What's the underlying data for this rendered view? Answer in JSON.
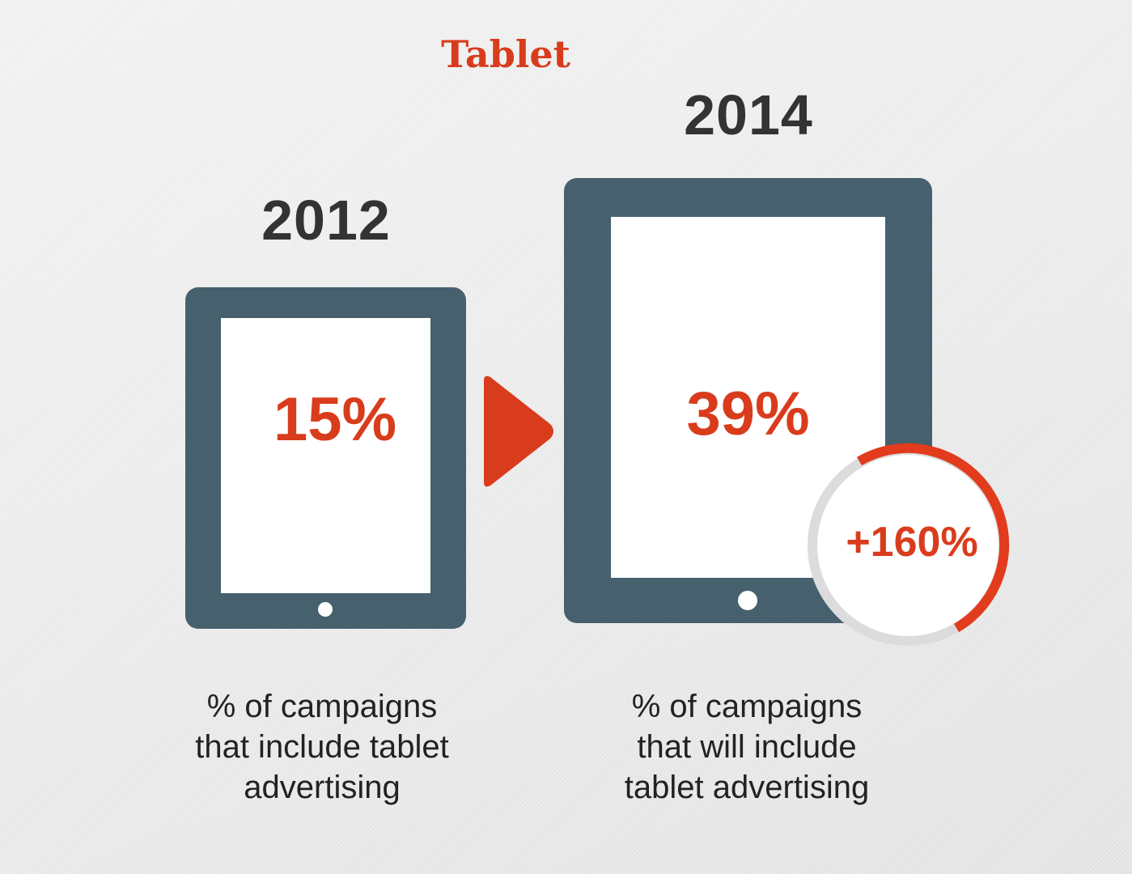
{
  "title": "Tablet",
  "colors": {
    "accent": "#d93c1c",
    "tablet_body": "#46606e",
    "ring_track": "#dcdcdc",
    "year_text": "#333333"
  },
  "items": [
    {
      "year": "2012",
      "percent": "15%",
      "description_lines": [
        "% of campaigns",
        "that include tablet",
        "advertising"
      ]
    },
    {
      "year": "2014",
      "percent": "39%",
      "description_lines": [
        "% of campaigns",
        "that will include",
        "tablet advertising"
      ]
    }
  ],
  "growth": {
    "label": "+160%"
  },
  "icons": {
    "arrow": "arrow-right-icon"
  }
}
